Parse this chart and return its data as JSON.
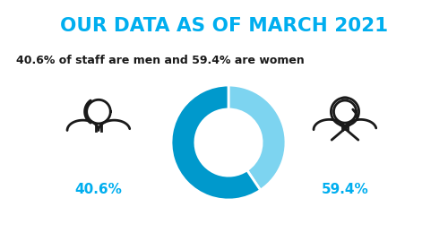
{
  "title": "OUR DATA AS OF MARCH 2021",
  "subtitle": "40.6% of staff are men and 59.4% are women",
  "male_pct": 40.6,
  "female_pct": 59.4,
  "male_label": "40.6%",
  "female_label": "59.4%",
  "title_color": "#00aeef",
  "subtitle_color": "#1a1a1a",
  "label_color": "#00aeef",
  "donut_male_color": "#7dd4f0",
  "donut_female_color": "#0099cc",
  "figure_bg": "#ffffff",
  "icon_color": "#1a1a1a",
  "icon_lw": 2.0
}
